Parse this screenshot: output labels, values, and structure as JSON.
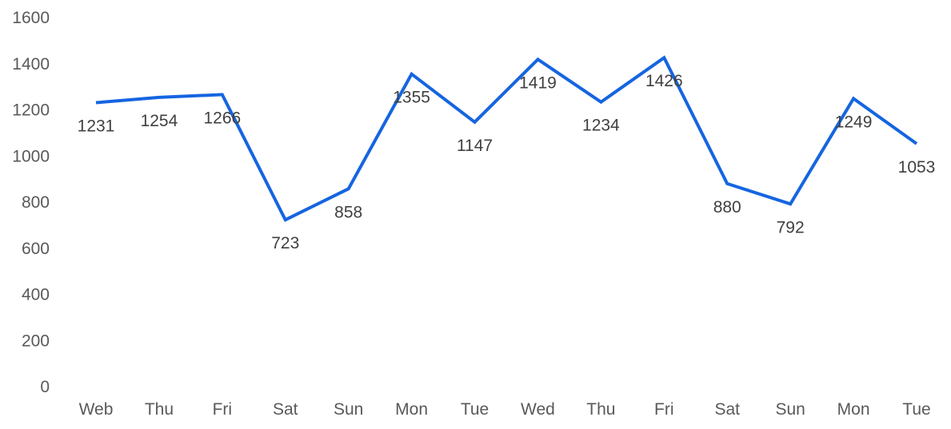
{
  "chart_data": {
    "type": "line",
    "categories": [
      "Web",
      "Thu",
      "Fri",
      "Sat",
      "Sun",
      "Mon",
      "Tue",
      "Wed",
      "Thu",
      "Fri",
      "Sat",
      "Sun",
      "Mon",
      "Tue"
    ],
    "series": [
      {
        "values": [
          1231,
          1254,
          1266,
          723,
          858,
          1355,
          1147,
          1419,
          1234,
          1426,
          880,
          792,
          1249,
          1053
        ],
        "color": "#1565e0"
      }
    ],
    "data_labels": [
      "1231",
      "1254",
      "1266",
      "723",
      "858",
      "1355",
      "1147",
      "1419",
      "1234",
      "1426",
      "880",
      "792",
      "1249",
      "1053"
    ],
    "yticks": [
      "0",
      "200",
      "400",
      "600",
      "800",
      "1000",
      "1200",
      "1400",
      "1600"
    ],
    "ylim": [
      0,
      1600
    ],
    "grid": false,
    "legend": "none"
  }
}
